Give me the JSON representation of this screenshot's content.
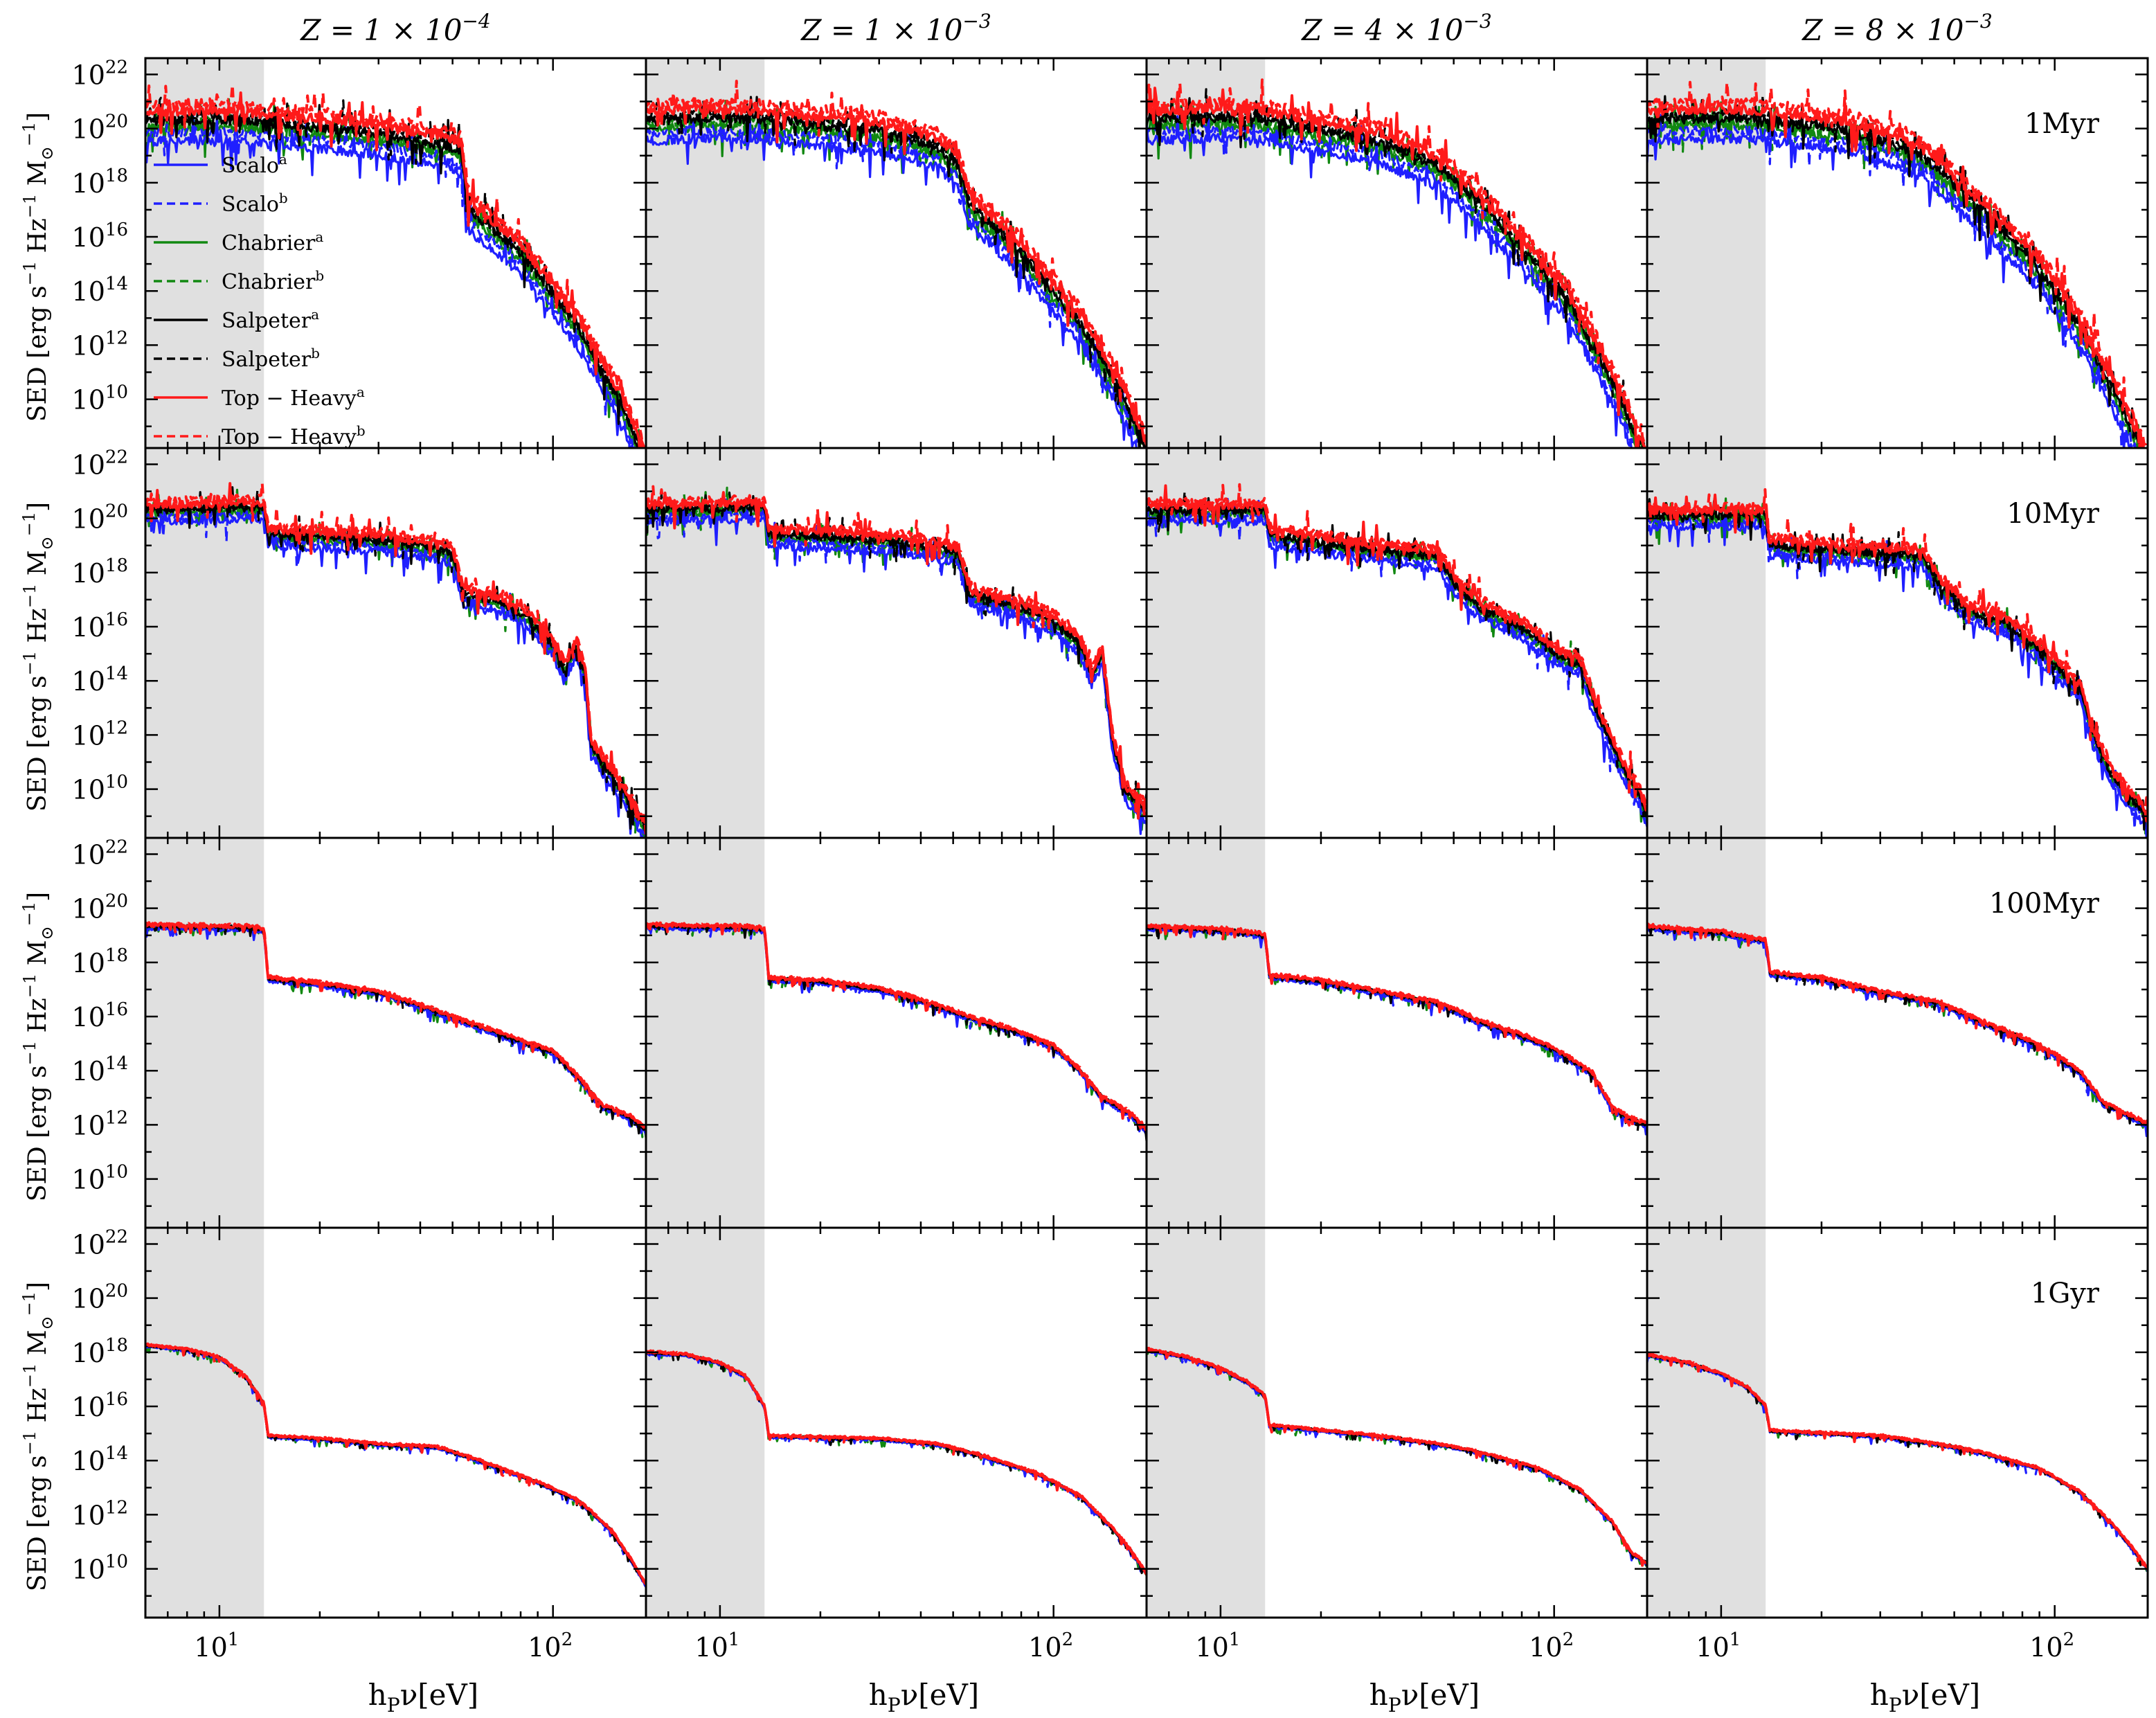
{
  "chart_data": {
    "type": "line",
    "grid": "4x4 panels, shared axes",
    "columns": [
      {
        "title_prefix": "Z = 1 × 10",
        "title_exp": "−4"
      },
      {
        "title_prefix": "Z = 1 × 10",
        "title_exp": "−3"
      },
      {
        "title_prefix": "Z = 4 × 10",
        "title_exp": "−3"
      },
      {
        "title_prefix": "Z = 8 × 10",
        "title_exp": "−3"
      }
    ],
    "rows": [
      {
        "age_label": "1Myr"
      },
      {
        "age_label": "10Myr"
      },
      {
        "age_label": "100Myr"
      },
      {
        "age_label": "1Gyr"
      }
    ],
    "xlabel": "hPν[eV]",
    "xlabel_parts": {
      "h": "h",
      "sub": "P",
      "rest": "ν[eV]"
    },
    "ylabel": "SED [erg s⁻¹ Hz⁻¹ M☉⁻¹]",
    "ylabel_parts": {
      "a": "SED [erg s",
      "b": "−1",
      "c": " Hz",
      "d": "−1",
      "e": " M",
      "f": "⊙",
      "g": "−1",
      "h": "]"
    },
    "xscale": "log",
    "yscale": "log",
    "xlim": [
      6,
      190
    ],
    "ylim": [
      8.2,
      22.6
    ],
    "xticks": [
      {
        "base": "10",
        "exp": "1",
        "value": 10
      },
      {
        "base": "10",
        "exp": "2",
        "value": 100
      }
    ],
    "yticks": [
      {
        "base": "10",
        "exp": "10",
        "value": 10
      },
      {
        "base": "10",
        "exp": "12",
        "value": 12
      },
      {
        "base": "10",
        "exp": "14",
        "value": 14
      },
      {
        "base": "10",
        "exp": "16",
        "value": 16
      },
      {
        "base": "10",
        "exp": "18",
        "value": 18
      },
      {
        "base": "10",
        "exp": "20",
        "value": 20
      },
      {
        "base": "10",
        "exp": "22",
        "value": 22
      }
    ],
    "shaded_band_ev": [
      6,
      13.6
    ],
    "legend": [
      {
        "name": "Scalo",
        "sup": "a",
        "color": "#1f1fff",
        "dash": "solid"
      },
      {
        "name": "Scalo",
        "sup": "b",
        "color": "#1f1fff",
        "dash": "dashed"
      },
      {
        "name": "Chabrier",
        "sup": "a",
        "color": "#118811",
        "dash": "solid"
      },
      {
        "name": "Chabrier",
        "sup": "b",
        "color": "#118811",
        "dash": "dashed"
      },
      {
        "name": "Salpeter",
        "sup": "a",
        "color": "#000000",
        "dash": "solid"
      },
      {
        "name": "Salpeter",
        "sup": "b",
        "color": "#000000",
        "dash": "dashed"
      },
      {
        "name": "Top − Heavy",
        "sup": "a",
        "color": "#ff1a1a",
        "dash": "solid"
      },
      {
        "name": "Top − Heavy",
        "sup": "b",
        "color": "#ff1a1a",
        "dash": "dashed"
      }
    ],
    "series_offsets_dex": [
      -0.75,
      -0.45,
      -0.25,
      -0.1,
      0.0,
      0.15,
      0.35,
      0.6
    ],
    "panels": [
      {
        "row": 0,
        "col": 0,
        "curve": [
          [
            6,
            20.25
          ],
          [
            10,
            20.35
          ],
          [
            13.6,
            20.2
          ],
          [
            30,
            19.8
          ],
          [
            50,
            19.3
          ],
          [
            53,
            19.1
          ],
          [
            56,
            17.0
          ],
          [
            80,
            15.4
          ],
          [
            120,
            12.6
          ],
          [
            160,
            9.8
          ],
          [
            190,
            7.6
          ]
        ]
      },
      {
        "row": 0,
        "col": 1,
        "curve": [
          [
            6,
            20.3
          ],
          [
            10,
            20.4
          ],
          [
            13.6,
            20.3
          ],
          [
            30,
            19.9
          ],
          [
            45,
            19.3
          ],
          [
            52,
            18.6
          ],
          [
            56,
            17.2
          ],
          [
            80,
            15.4
          ],
          [
            120,
            12.8
          ],
          [
            160,
            10.2
          ],
          [
            190,
            8.0
          ]
        ]
      },
      {
        "row": 0,
        "col": 2,
        "curve": [
          [
            6,
            20.3
          ],
          [
            10,
            20.4
          ],
          [
            13.6,
            20.3
          ],
          [
            30,
            19.5
          ],
          [
            45,
            18.6
          ],
          [
            60,
            17.2
          ],
          [
            80,
            15.6
          ],
          [
            110,
            13.7
          ],
          [
            150,
            10.6
          ],
          [
            190,
            7.6
          ]
        ]
      },
      {
        "row": 0,
        "col": 3,
        "curve": [
          [
            6,
            20.3
          ],
          [
            10,
            20.4
          ],
          [
            13.6,
            20.3
          ],
          [
            25,
            19.9
          ],
          [
            40,
            19.0
          ],
          [
            60,
            17.0
          ],
          [
            90,
            14.8
          ],
          [
            120,
            12.6
          ],
          [
            160,
            9.6
          ],
          [
            190,
            7.6
          ]
        ]
      },
      {
        "row": 1,
        "col": 0,
        "curve": [
          [
            6,
            20.3
          ],
          [
            13.6,
            20.4
          ],
          [
            14,
            19.4
          ],
          [
            30,
            19.2
          ],
          [
            45,
            18.9
          ],
          [
            50,
            18.7
          ],
          [
            54,
            17.2
          ],
          [
            70,
            16.9
          ],
          [
            85,
            16.3
          ],
          [
            100,
            15.3
          ],
          [
            108,
            14.4
          ],
          [
            118,
            15.3
          ],
          [
            125,
            14.2
          ],
          [
            130,
            11.6
          ],
          [
            160,
            10.0
          ],
          [
            190,
            8.5
          ]
        ]
      },
      {
        "row": 1,
        "col": 1,
        "curve": [
          [
            6,
            20.3
          ],
          [
            13.6,
            20.4
          ],
          [
            14,
            19.4
          ],
          [
            30,
            19.2
          ],
          [
            45,
            18.9
          ],
          [
            52,
            18.7
          ],
          [
            56,
            17.2
          ],
          [
            75,
            16.8
          ],
          [
            100,
            16.2
          ],
          [
            120,
            15.4
          ],
          [
            130,
            14.2
          ],
          [
            140,
            15.0
          ],
          [
            150,
            11.8
          ],
          [
            165,
            9.9
          ],
          [
            190,
            9.2
          ]
        ]
      },
      {
        "row": 1,
        "col": 2,
        "curve": [
          [
            6,
            20.3
          ],
          [
            13.6,
            20.3
          ],
          [
            14,
            19.4
          ],
          [
            30,
            18.8
          ],
          [
            45,
            18.6
          ],
          [
            50,
            17.6
          ],
          [
            60,
            16.7
          ],
          [
            80,
            16.0
          ],
          [
            100,
            15.0
          ],
          [
            120,
            14.6
          ],
          [
            135,
            12.8
          ],
          [
            150,
            11.6
          ],
          [
            165,
            10.5
          ],
          [
            180,
            9.8
          ],
          [
            190,
            9.0
          ]
        ]
      },
      {
        "row": 1,
        "col": 3,
        "curve": [
          [
            6,
            20.1
          ],
          [
            13.6,
            20.1
          ],
          [
            14,
            19.0
          ],
          [
            30,
            18.7
          ],
          [
            40,
            18.6
          ],
          [
            45,
            17.6
          ],
          [
            55,
            16.6
          ],
          [
            70,
            16.2
          ],
          [
            85,
            15.4
          ],
          [
            100,
            14.6
          ],
          [
            120,
            13.6
          ],
          [
            130,
            12.0
          ],
          [
            150,
            10.4
          ],
          [
            170,
            9.6
          ],
          [
            190,
            9.0
          ]
        ]
      },
      {
        "row": 2,
        "col": 0,
        "curve": [
          [
            6,
            19.35
          ],
          [
            10,
            19.3
          ],
          [
            12,
            19.3
          ],
          [
            13.6,
            19.2
          ],
          [
            14,
            17.4
          ],
          [
            20,
            17.2
          ],
          [
            30,
            16.9
          ],
          [
            40,
            16.4
          ],
          [
            55,
            15.8
          ],
          [
            75,
            15.2
          ],
          [
            100,
            14.7
          ],
          [
            120,
            13.7
          ],
          [
            140,
            12.7
          ],
          [
            170,
            12.3
          ],
          [
            190,
            11.8
          ]
        ]
      },
      {
        "row": 2,
        "col": 1,
        "curve": [
          [
            6,
            19.35
          ],
          [
            10,
            19.3
          ],
          [
            12,
            19.3
          ],
          [
            13.6,
            19.2
          ],
          [
            14,
            17.4
          ],
          [
            20,
            17.3
          ],
          [
            30,
            17.0
          ],
          [
            40,
            16.6
          ],
          [
            55,
            16.0
          ],
          [
            75,
            15.5
          ],
          [
            100,
            14.9
          ],
          [
            120,
            14.0
          ],
          [
            140,
            13.0
          ],
          [
            170,
            12.4
          ],
          [
            190,
            11.8
          ]
        ]
      },
      {
        "row": 2,
        "col": 2,
        "curve": [
          [
            6,
            19.3
          ],
          [
            10,
            19.2
          ],
          [
            12,
            19.1
          ],
          [
            13.6,
            19.0
          ],
          [
            14,
            17.5
          ],
          [
            20,
            17.3
          ],
          [
            30,
            16.9
          ],
          [
            45,
            16.5
          ],
          [
            60,
            15.8
          ],
          [
            80,
            15.3
          ],
          [
            100,
            14.8
          ],
          [
            130,
            13.9
          ],
          [
            150,
            12.6
          ],
          [
            170,
            12.2
          ],
          [
            190,
            12.0
          ]
        ]
      },
      {
        "row": 2,
        "col": 3,
        "curve": [
          [
            6,
            19.3
          ],
          [
            10,
            19.1
          ],
          [
            12,
            18.9
          ],
          [
            13.6,
            18.8
          ],
          [
            14,
            17.6
          ],
          [
            20,
            17.4
          ],
          [
            30,
            16.9
          ],
          [
            45,
            16.5
          ],
          [
            60,
            15.8
          ],
          [
            80,
            15.2
          ],
          [
            100,
            14.6
          ],
          [
            120,
            13.9
          ],
          [
            140,
            12.8
          ],
          [
            170,
            12.3
          ],
          [
            190,
            12.0
          ]
        ]
      },
      {
        "row": 3,
        "col": 0,
        "curve": [
          [
            6,
            18.25
          ],
          [
            8,
            18.1
          ],
          [
            10,
            17.8
          ],
          [
            12,
            17.1
          ],
          [
            13.6,
            16.1
          ],
          [
            14,
            14.9
          ],
          [
            20,
            14.8
          ],
          [
            30,
            14.6
          ],
          [
            45,
            14.5
          ],
          [
            60,
            14.0
          ],
          [
            90,
            13.2
          ],
          [
            120,
            12.5
          ],
          [
            150,
            11.4
          ],
          [
            170,
            10.4
          ],
          [
            190,
            9.4
          ]
        ]
      },
      {
        "row": 3,
        "col": 1,
        "curve": [
          [
            6,
            18.0
          ],
          [
            8,
            17.9
          ],
          [
            10,
            17.6
          ],
          [
            12,
            17.1
          ],
          [
            13.6,
            16.0
          ],
          [
            14,
            14.9
          ],
          [
            30,
            14.8
          ],
          [
            45,
            14.6
          ],
          [
            60,
            14.2
          ],
          [
            90,
            13.5
          ],
          [
            120,
            12.7
          ],
          [
            150,
            11.5
          ],
          [
            170,
            10.7
          ],
          [
            190,
            9.8
          ]
        ]
      },
      {
        "row": 3,
        "col": 2,
        "curve": [
          [
            6,
            18.1
          ],
          [
            8,
            17.8
          ],
          [
            10,
            17.4
          ],
          [
            12,
            16.9
          ],
          [
            13.6,
            16.4
          ],
          [
            14,
            15.3
          ],
          [
            30,
            14.9
          ],
          [
            45,
            14.6
          ],
          [
            60,
            14.3
          ],
          [
            90,
            13.7
          ],
          [
            120,
            12.9
          ],
          [
            150,
            11.7
          ],
          [
            170,
            10.6
          ],
          [
            190,
            10.2
          ]
        ]
      },
      {
        "row": 3,
        "col": 3,
        "curve": [
          [
            6,
            17.9
          ],
          [
            8,
            17.6
          ],
          [
            10,
            17.2
          ],
          [
            12,
            16.7
          ],
          [
            13.6,
            16.0
          ],
          [
            14,
            15.1
          ],
          [
            30,
            14.9
          ],
          [
            45,
            14.6
          ],
          [
            60,
            14.3
          ],
          [
            90,
            13.7
          ],
          [
            120,
            12.8
          ],
          [
            150,
            11.6
          ],
          [
            170,
            10.8
          ],
          [
            190,
            10.0
          ]
        ]
      }
    ]
  }
}
